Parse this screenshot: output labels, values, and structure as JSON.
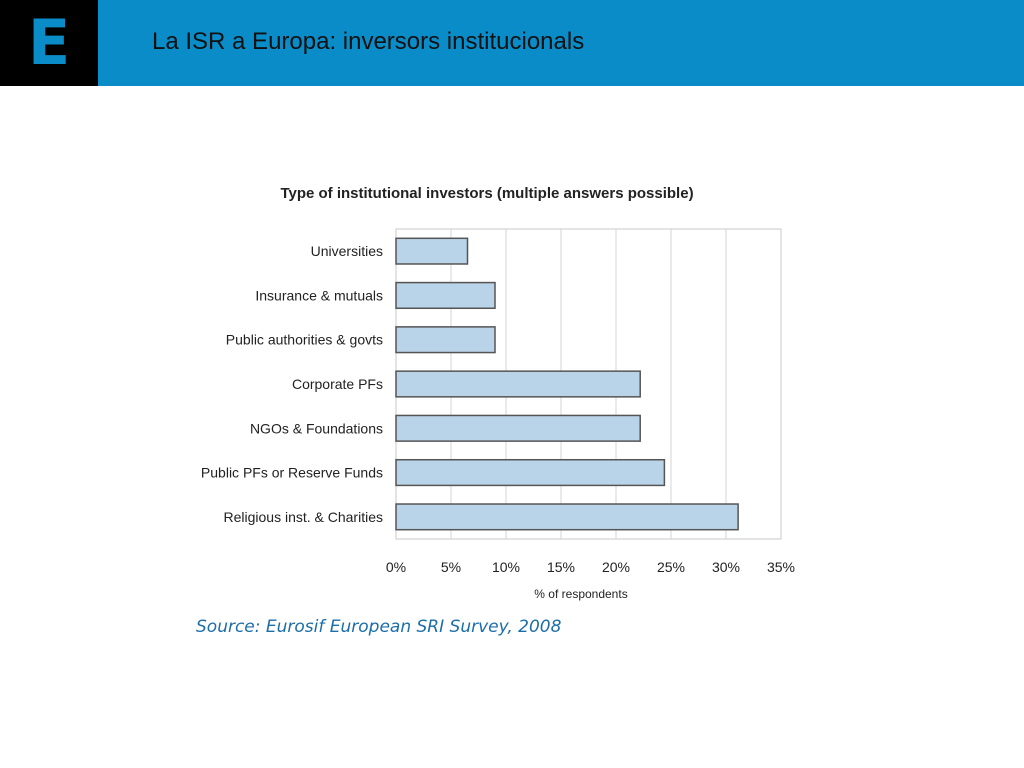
{
  "header": {
    "logo_letter": "E",
    "title": "La ISR a Europa: inversors institucionals",
    "accent_color": "#0a8cc9"
  },
  "chart_data": {
    "type": "bar",
    "orientation": "horizontal",
    "title": "Type of institutional investors (multiple answers possible)",
    "xlabel": "% of respondents",
    "ylabel": "",
    "categories": [
      "Universities",
      "Insurance & mutuals",
      "Public authorities & govts",
      "Corporate PFs",
      "NGOs & Foundations",
      "Public PFs or Reserve Funds",
      "Religious inst. & Charities"
    ],
    "values": [
      6.5,
      9,
      9,
      22.2,
      22.2,
      24.4,
      31.1
    ],
    "xlim": [
      0,
      35
    ],
    "xticks": [
      "0%",
      "5%",
      "10%",
      "15%",
      "20%",
      "25%",
      "30%",
      "35%"
    ],
    "grid": true,
    "bar_color": "#b9d3e9",
    "bar_edge_color": "#555555"
  },
  "source": "Source: Eurosif European SRI Survey, 2008"
}
